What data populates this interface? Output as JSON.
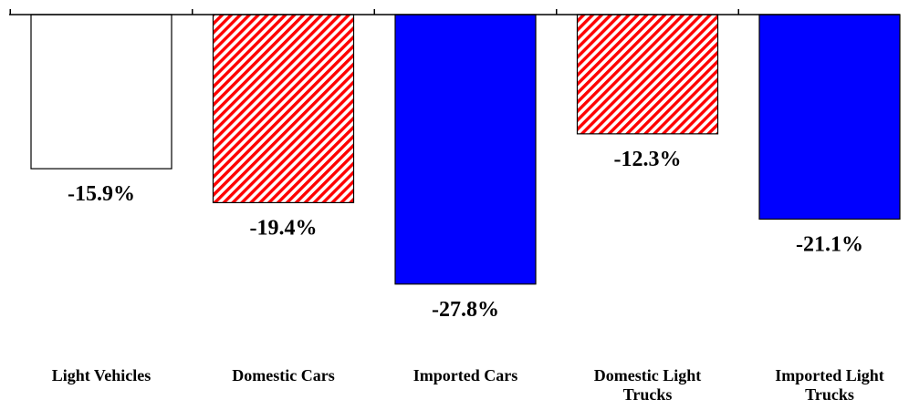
{
  "chart_data": {
    "type": "bar",
    "categories": [
      [
        "Light Vehicles"
      ],
      [
        "Domestic Cars"
      ],
      [
        "Imported Cars"
      ],
      [
        "Domestic Light",
        "Trucks"
      ],
      [
        "Imported Light",
        "Trucks"
      ]
    ],
    "values": [
      -15.9,
      -19.4,
      -27.8,
      -12.3,
      -21.1
    ],
    "data_labels": [
      "-15.9%",
      "-19.4%",
      "-27.8%",
      "-12.3%",
      "-21.1%"
    ],
    "fills": [
      "white",
      "red-hatch",
      "#0000FF",
      "red-hatch",
      "#0000FF"
    ],
    "hatch_color": "#FF0000",
    "bar_outline_color": "#000000",
    "ylim": [
      -40,
      0
    ],
    "grid": false,
    "legend": "none",
    "title": "",
    "xlabel": "",
    "ylabel": ""
  }
}
